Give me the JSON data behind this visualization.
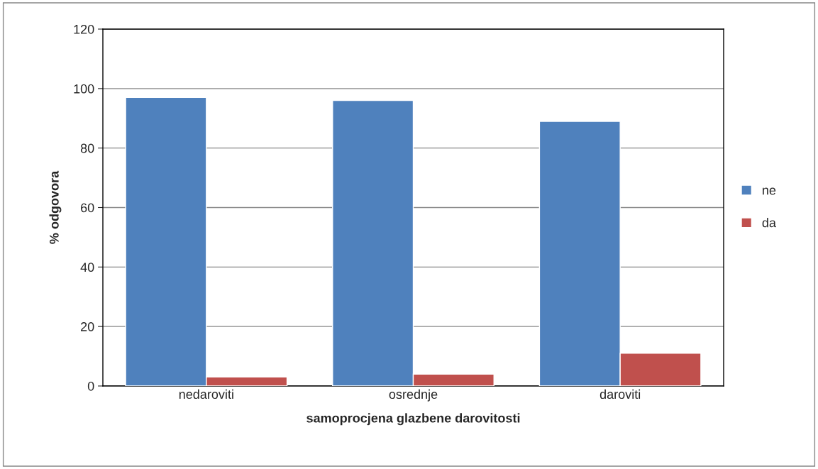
{
  "chart_data": {
    "type": "bar",
    "xlabel": "samoprocjena glazbene darovitosti",
    "ylabel": "% odgovora",
    "categories": [
      "nedaroviti",
      "osrednje",
      "daroviti"
    ],
    "series": [
      {
        "name": "ne",
        "color": "#4f81bd",
        "values": [
          97,
          96,
          89
        ]
      },
      {
        "name": "da",
        "color": "#c0504d",
        "values": [
          3,
          4,
          11
        ]
      }
    ],
    "ylim": [
      0,
      120
    ],
    "yticks": [
      0,
      20,
      40,
      60,
      80,
      100,
      120
    ],
    "grid": "y",
    "legend": "right"
  }
}
